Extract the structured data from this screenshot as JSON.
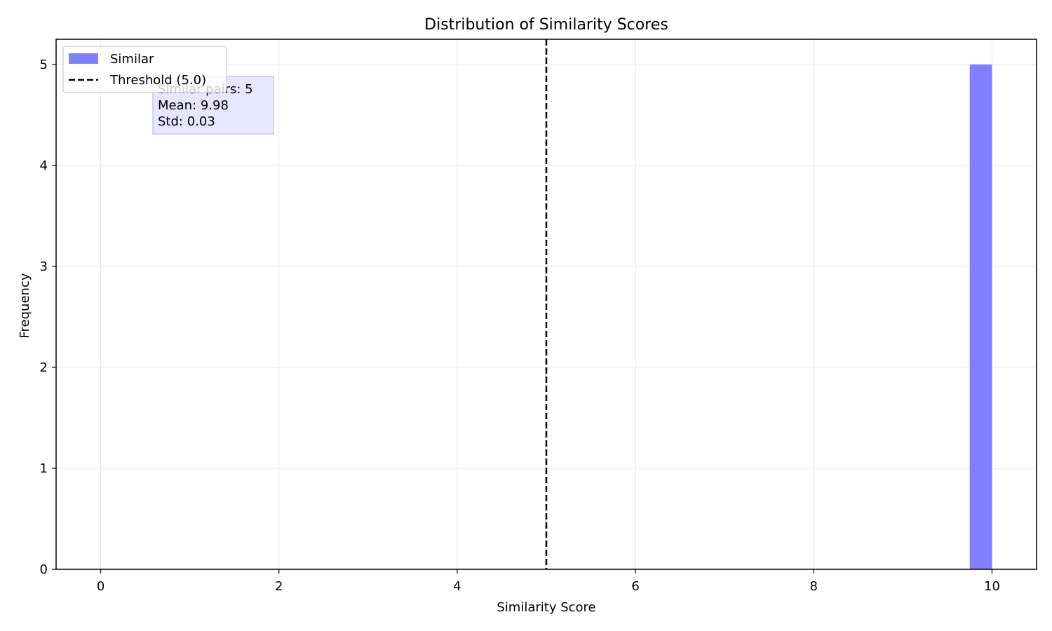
{
  "chart_data": {
    "type": "bar",
    "title": "Distribution of Similarity Scores",
    "xlabel": "Similarity Score",
    "ylabel": "Frequency",
    "xlim": [
      -0.5,
      10.5
    ],
    "ylim": [
      0,
      5.25
    ],
    "xticks": [
      0,
      2,
      4,
      6,
      8,
      10
    ],
    "yticks": [
      0,
      1,
      2,
      3,
      4,
      5
    ],
    "grid": true,
    "series": [
      {
        "name": "Similar",
        "color": "#8080ff",
        "bins": [
          {
            "x0": 9.75,
            "x1": 10.0,
            "count": 5
          }
        ]
      }
    ],
    "threshold": {
      "label": "Threshold (5.0)",
      "value": 5.0,
      "color": "#000000"
    },
    "legend": {
      "placement": "top-left",
      "entries": [
        "Similar",
        "Threshold (5.0)"
      ]
    },
    "stats_box": {
      "lines": [
        "Similar pairs: 5",
        "Mean: 9.98",
        "Std: 0.03"
      ],
      "color": "#e6e6ff"
    }
  }
}
